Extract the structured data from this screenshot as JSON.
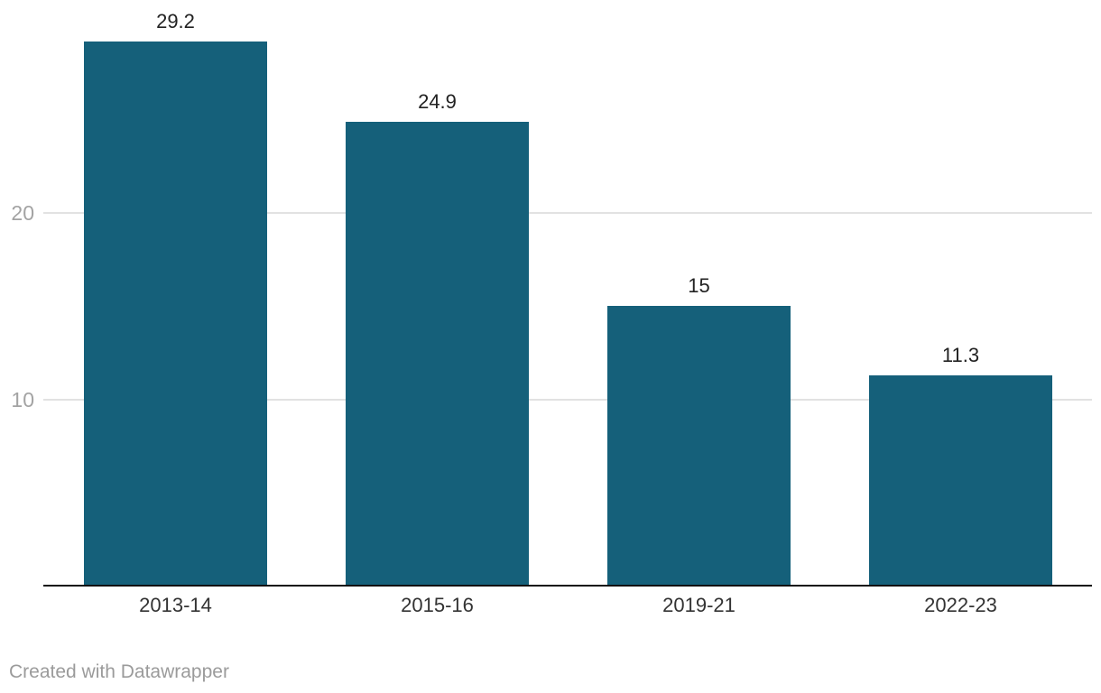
{
  "chart_data": {
    "type": "bar",
    "categories": [
      "2013-14",
      "2015-16",
      "2019-21",
      "2022-23"
    ],
    "values": [
      29.2,
      24.9,
      15,
      11.3
    ],
    "value_labels": [
      "29.2",
      "24.9",
      "15",
      "11.3"
    ],
    "title": "",
    "xlabel": "",
    "ylabel": "",
    "ylim": [
      0,
      30
    ],
    "y_ticks": [
      10,
      20
    ],
    "grid": true,
    "legend": "none",
    "bar_color": "#15607a",
    "gridline_color": "#e2e2e2",
    "axis_line_color": "#111111",
    "tick_label_color": "#a3a3a3",
    "value_label_color": "#222222",
    "category_label_color": "#333333",
    "attribution": "Created with Datawrapper"
  }
}
